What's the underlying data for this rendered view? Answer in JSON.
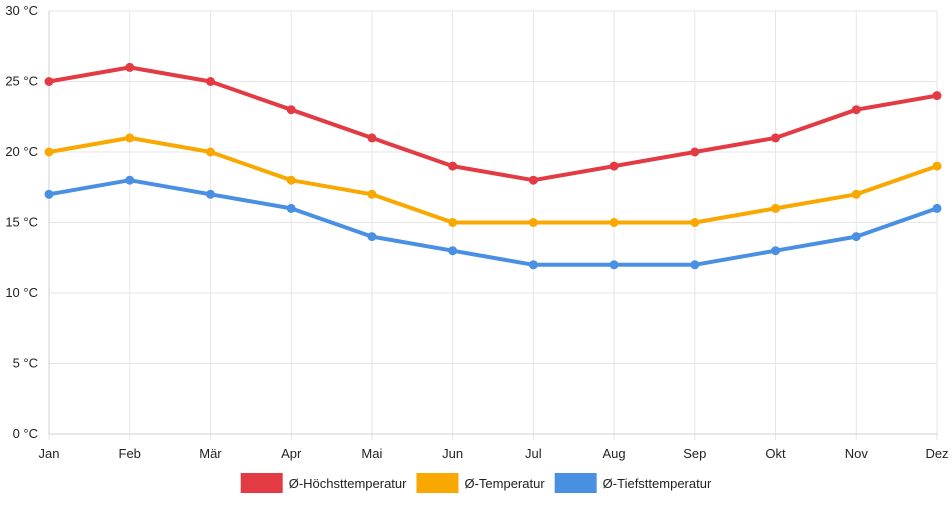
{
  "chart_data": {
    "type": "line",
    "categories": [
      "Jan",
      "Feb",
      "Mär",
      "Apr",
      "Mai",
      "Jun",
      "Jul",
      "Aug",
      "Sep",
      "Okt",
      "Nov",
      "Dez"
    ],
    "series": [
      {
        "name": "Ø-Höchsttemperatur",
        "color": "#e23b44",
        "values": [
          25,
          26,
          25,
          23,
          21,
          19,
          18,
          19,
          20,
          21,
          23,
          24
        ]
      },
      {
        "name": "Ø-Temperatur",
        "color": "#f8a800",
        "values": [
          20,
          21,
          20,
          18,
          17,
          15,
          15,
          15,
          15,
          16,
          17,
          19
        ]
      },
      {
        "name": "Ø-Tiefsttemperatur",
        "color": "#4a90e2",
        "values": [
          17,
          18,
          17,
          16,
          14,
          13,
          12,
          12,
          12,
          13,
          14,
          16
        ]
      }
    ],
    "yticks": [
      "0 °C",
      "5 °C",
      "10 °C",
      "15 °C",
      "20 °C",
      "25 °C",
      "30 °C"
    ],
    "ylim": [
      0,
      30
    ],
    "ystep": 5,
    "title": "",
    "xlabel": "",
    "ylabel": "",
    "grid": true,
    "legend_position": "bottom"
  }
}
